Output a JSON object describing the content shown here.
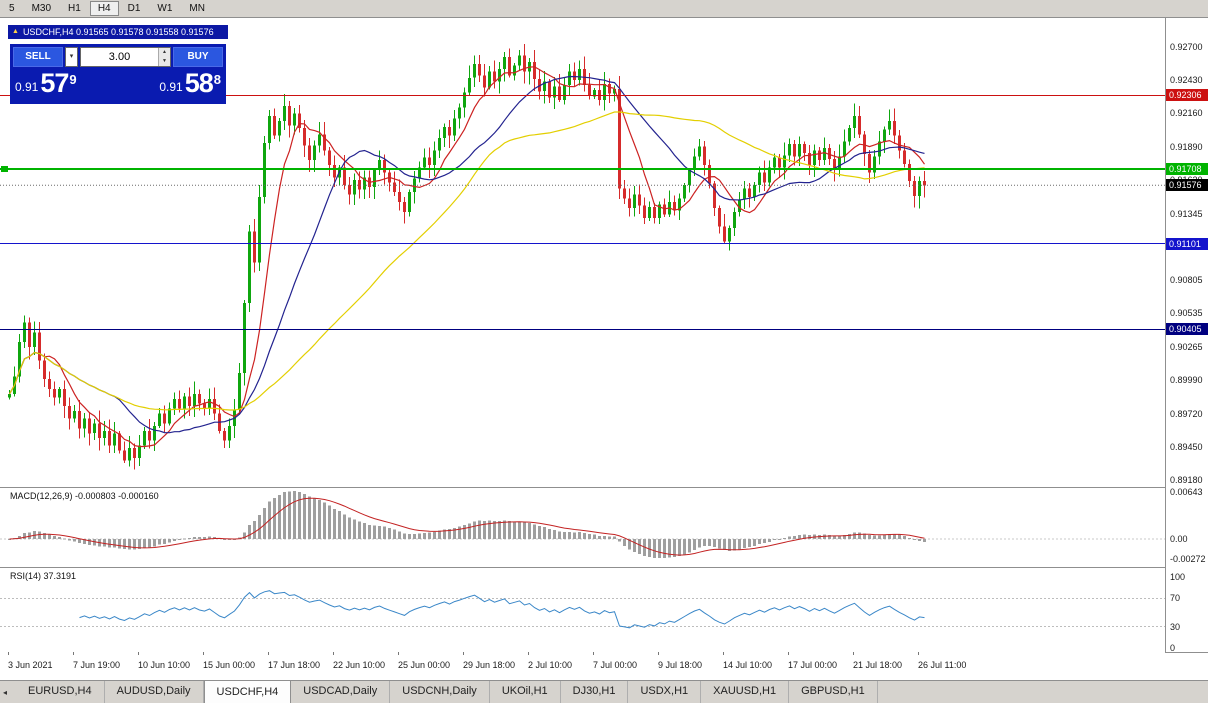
{
  "window": {
    "title": "USDCHF,H4 0.91565 0.91578 0.91558 0.91576",
    "timeframes": [
      "5",
      "M30",
      "H1",
      "H4",
      "D1",
      "W1",
      "MN"
    ],
    "active_timeframe": "H4",
    "tabs": [
      "EURUSD,H4",
      "AUDUSD,Daily",
      "USDCHF,H4",
      "USDCAD,Daily",
      "USDCNH,Daily",
      "UKOil,H1",
      "DJ30,H1",
      "USDX,H1",
      "XAUUSD,H1",
      "GBPUSD,H1"
    ],
    "active_tab": "USDCHF,H4"
  },
  "one_click": {
    "sell_label": "SELL",
    "buy_label": "BUY",
    "volume": "3.00",
    "sell_price": {
      "prefix": "0.91",
      "big": "57",
      "sup": "9"
    },
    "buy_price": {
      "prefix": "0.91",
      "big": "58",
      "sup": "8"
    }
  },
  "chart_data": {
    "type": "candlestick",
    "symbol": "USDCHF",
    "timeframe": "H4",
    "first_open": 0.8985,
    "closes": [
      0.8988,
      0.9002,
      0.903,
      0.9046,
      0.9026,
      0.9038,
      0.9015,
      0.9,
      0.8992,
      0.8985,
      0.8992,
      0.8978,
      0.8968,
      0.8974,
      0.896,
      0.8968,
      0.8956,
      0.8964,
      0.8952,
      0.8958,
      0.8946,
      0.8956,
      0.8942,
      0.8934,
      0.8944,
      0.8936,
      0.8946,
      0.8958,
      0.895,
      0.8962,
      0.8972,
      0.8964,
      0.8976,
      0.8984,
      0.8976,
      0.8986,
      0.8978,
      0.8988,
      0.898,
      0.8976,
      0.8984,
      0.8972,
      0.8958,
      0.895,
      0.8962,
      0.8975,
      0.9005,
      0.9062,
      0.912,
      0.9095,
      0.9148,
      0.9192,
      0.9214,
      0.9198,
      0.921,
      0.9222,
      0.9206,
      0.9216,
      0.9204,
      0.919,
      0.9178,
      0.919,
      0.9199,
      0.9186,
      0.9174,
      0.9164,
      0.9172,
      0.9158,
      0.915,
      0.9162,
      0.9154,
      0.9164,
      0.9156,
      0.917,
      0.9178,
      0.9168,
      0.916,
      0.9152,
      0.9144,
      0.9136,
      0.9152,
      0.9163,
      0.9172,
      0.918,
      0.9174,
      0.9186,
      0.9196,
      0.9205,
      0.9198,
      0.9212,
      0.9221,
      0.9233,
      0.9245,
      0.9256,
      0.9247,
      0.9237,
      0.925,
      0.9242,
      0.9252,
      0.9262,
      0.9247,
      0.9255,
      0.9263,
      0.925,
      0.9258,
      0.9244,
      0.9234,
      0.9242,
      0.9229,
      0.9238,
      0.9227,
      0.9239,
      0.925,
      0.9243,
      0.9252,
      0.9239,
      0.923,
      0.9235,
      0.9227,
      0.924,
      0.9232,
      0.9236,
      0.9155,
      0.9147,
      0.9139,
      0.915,
      0.9141,
      0.9131,
      0.914,
      0.9131,
      0.9142,
      0.9134,
      0.9144,
      0.9137,
      0.9147,
      0.9158,
      0.917,
      0.9181,
      0.9189,
      0.9174,
      0.9159,
      0.9139,
      0.9124,
      0.9112,
      0.9123,
      0.9136,
      0.9146,
      0.9155,
      0.9148,
      0.9158,
      0.9168,
      0.916,
      0.9172,
      0.918,
      0.9172,
      0.9182,
      0.9191,
      0.9181,
      0.9191,
      0.9184,
      0.9174,
      0.9186,
      0.9178,
      0.9188,
      0.9179,
      0.917,
      0.9181,
      0.9193,
      0.9204,
      0.9214,
      0.9199,
      0.9183,
      0.9168,
      0.9181,
      0.9193,
      0.9203,
      0.921,
      0.9198,
      0.9186,
      0.9175,
      0.9161,
      0.9149,
      0.9161,
      0.91576
    ],
    "colors": {
      "up": "#0fa60f",
      "down": "#d62b2b"
    },
    "moving_averages": [
      {
        "name": "ma-fast-red-line",
        "period": 8,
        "color": "#cc2222"
      },
      {
        "name": "ma-mid-blue-line",
        "period": 21,
        "color": "#23238f"
      },
      {
        "name": "ma-slow-yellow-line",
        "period": 50,
        "color": "#e3cf00"
      }
    ],
    "levels": [
      {
        "label": "0.92306",
        "price": 0.92306,
        "color": "#cc1111",
        "width": 1,
        "marker": false
      },
      {
        "label": "0.91708",
        "price": 0.91708,
        "color": "#00b300",
        "width": 2,
        "marker": true
      },
      {
        "label": "0.91101",
        "price": 0.91101,
        "color": "#1414cc",
        "width": 1,
        "marker": false
      },
      {
        "label": "0.90405",
        "price": 0.90405,
        "color": "#000080",
        "width": 1,
        "marker": false
      }
    ],
    "current_price": {
      "label": "0.91576",
      "price": 0.91576,
      "badge_color": "#000000"
    },
    "y_ticks": [
      "0.92700",
      "0.92430",
      "0.92160",
      "0.91890",
      "0.91620",
      "0.91345",
      "0.91075",
      "0.90805",
      "0.90535",
      "0.90265",
      "0.89990",
      "0.89720",
      "0.89450",
      "0.89180"
    ],
    "x_ticks": [
      "3 Jun 2021",
      "7 Jun 19:00",
      "10 Jun 10:00",
      "15 Jun 00:00",
      "17 Jun 18:00",
      "22 Jun 10:00",
      "25 Jun 00:00",
      "29 Jun 18:00",
      "2 Jul 10:00",
      "7 Jul 00:00",
      "9 Jul 18:00",
      "14 Jul 10:00",
      "17 Jul 00:00",
      "21 Jul 18:00",
      "26 Jul 11:00"
    ],
    "indicators": {
      "macd": {
        "title": "MACD(12,26,9)",
        "values_text": "-0.000803 -0.000160",
        "fast": 12,
        "slow": 26,
        "signal": 9,
        "axis": [
          {
            "label": "0.00643",
            "value": 0.00643
          },
          {
            "label": "0.00",
            "value": 0
          },
          {
            "label": "-0.00272",
            "value": -0.00272
          }
        ],
        "histogram_color": "#9f9f9f",
        "signal_color": "#c32222"
      },
      "rsi": {
        "title": "RSI(14)",
        "value_text": "37.3191",
        "period": 14,
        "axis": [
          {
            "label": "100",
            "value": 100
          },
          {
            "label": "70",
            "value": 70
          },
          {
            "label": "30",
            "value": 30
          },
          {
            "label": "0",
            "value": 0
          }
        ],
        "levels": [
          70,
          30
        ],
        "line_color": "#3a87c8"
      }
    }
  }
}
